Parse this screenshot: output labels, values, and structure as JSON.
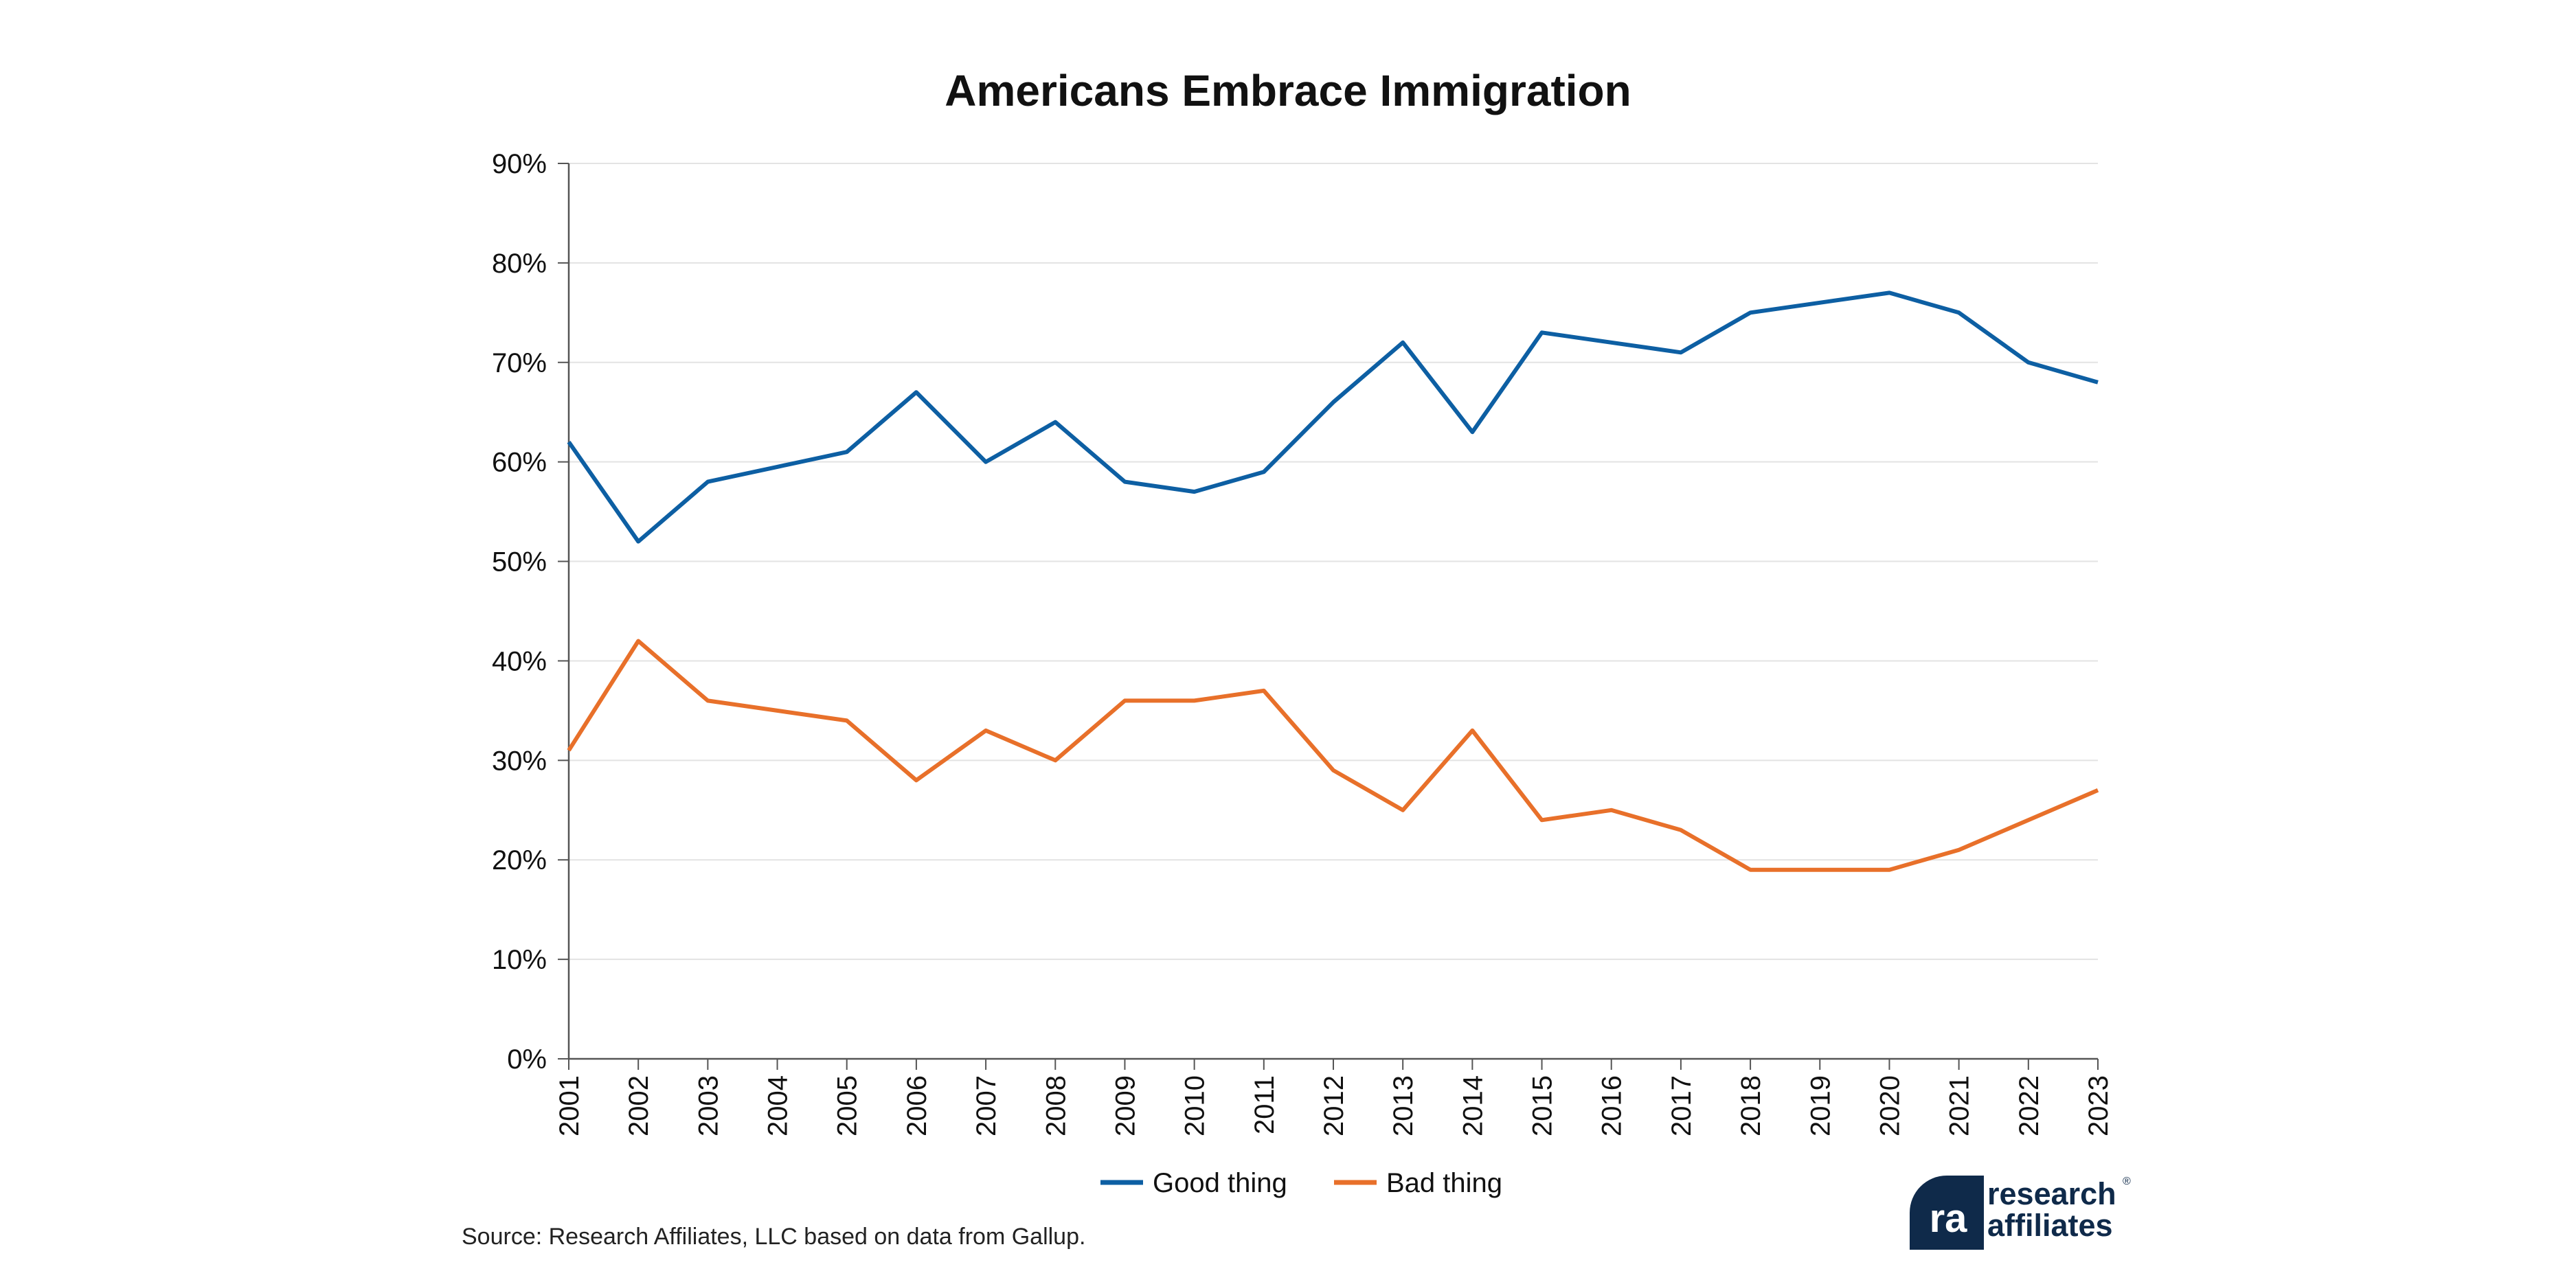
{
  "chart_data": {
    "type": "line",
    "title": "Americans Embrace Immigration",
    "x": [
      "2001",
      "2002",
      "2003",
      "2004",
      "2005",
      "2006",
      "2007",
      "2008",
      "2009",
      "2010",
      "2011",
      "2012",
      "2013",
      "2014",
      "2015",
      "2016",
      "2017",
      "2018",
      "2019",
      "2020",
      "2021",
      "2022",
      "2023"
    ],
    "y_ticks": [
      "0%",
      "10%",
      "20%",
      "30%",
      "40%",
      "50%",
      "60%",
      "70%",
      "80%",
      "90%"
    ],
    "ylim": [
      0,
      90
    ],
    "xlabel": "",
    "ylabel": "",
    "grid": true,
    "legend_position": "bottom-center",
    "series": [
      {
        "name": "Good thing",
        "color": "#0d5fa3",
        "values": [
          62,
          52,
          58,
          59.5,
          61,
          67,
          60,
          64,
          58,
          57,
          59,
          66,
          72,
          63,
          73,
          72,
          71,
          75,
          76,
          77,
          75,
          70,
          68
        ]
      },
      {
        "name": "Bad thing",
        "color": "#e8702a",
        "values": [
          31,
          42,
          36,
          35,
          34,
          28,
          33,
          30,
          36,
          36,
          37,
          29,
          25,
          33,
          24,
          25,
          23,
          19,
          19,
          19,
          21,
          24,
          27
        ]
      }
    ]
  },
  "source": "Source: Research Affiliates, LLC based on data from Gallup.",
  "logo": {
    "line1": "research",
    "line2": "affiliates",
    "mark": "ra",
    "reg": "®",
    "color": "#0f2a4a"
  }
}
